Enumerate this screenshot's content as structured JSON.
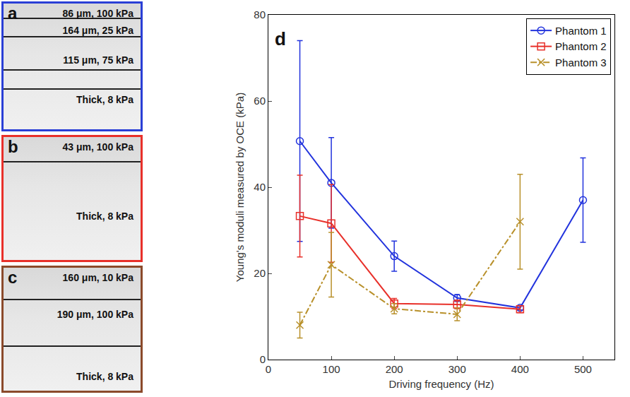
{
  "chart_data": {
    "type": "line",
    "panel_label": "d",
    "x_label": "Driving frequency (Hz)",
    "y_label": "Young's moduli measured by OCE (kPa)",
    "xlim": [
      0,
      550
    ],
    "xticks": [
      0,
      100,
      200,
      300,
      400,
      500
    ],
    "ylim": [
      0,
      80
    ],
    "yticks": [
      0,
      20,
      40,
      60,
      80
    ],
    "grid": false,
    "legend": "top right",
    "series": [
      {
        "name": "Phantom 1",
        "color": "#2233dd",
        "marker": "circle",
        "line_style": "solid",
        "x": [
          50,
          100,
          200,
          300,
          400,
          500
        ],
        "values": [
          50.7,
          41,
          24,
          14.3,
          12,
          37
        ],
        "error": [
          23.3,
          10.5,
          3.5,
          0.8,
          0.5,
          9.8
        ]
      },
      {
        "name": "Phantom 2",
        "color": "#e8302a",
        "marker": "square",
        "line_style": "solid",
        "x": [
          50,
          100,
          200,
          300,
          400
        ],
        "values": [
          33.3,
          31.6,
          13,
          12.8,
          11.7
        ],
        "error": [
          9.5,
          9,
          1.2,
          1,
          0.8
        ]
      },
      {
        "name": "Phantom 3",
        "color": "#b8902a",
        "marker": "x",
        "line_style": "dashdot",
        "x": [
          50,
          100,
          200,
          300,
          400
        ],
        "values": [
          8,
          22,
          11.8,
          10.5,
          32
        ],
        "error": [
          3,
          7.5,
          1.2,
          1.5,
          11
        ]
      }
    ]
  },
  "panels": [
    {
      "letter": "a",
      "color": "#2a3fd6",
      "labels": [
        "86 μm, 100 kPa",
        "164 μm, 25 kPa",
        "115 μm, 75 kPa",
        "Thick, 8 kPa"
      ]
    },
    {
      "letter": "b",
      "color": "#e8302a",
      "labels": [
        "43 μm, 100 kPa",
        "Thick, 8 kPa"
      ]
    },
    {
      "letter": "c",
      "color": "#8b4a2b",
      "labels": [
        "160 μm, 10 kPa",
        "190 μm, 100 kPa",
        "Thick, 8 kPa"
      ]
    }
  ]
}
